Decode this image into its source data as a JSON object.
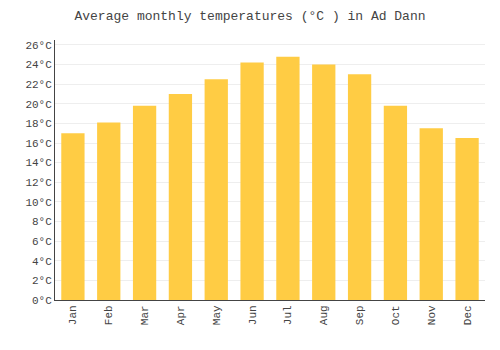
{
  "chart_data": {
    "type": "bar",
    "title": "Average monthly temperatures (°C ) in Ad Dann",
    "categories": [
      "Jan",
      "Feb",
      "Mar",
      "Apr",
      "May",
      "Jun",
      "Jul",
      "Aug",
      "Sep",
      "Oct",
      "Nov",
      "Dec"
    ],
    "values": [
      17.0,
      18.1,
      19.8,
      21.0,
      22.5,
      24.2,
      24.8,
      24.0,
      23.0,
      19.8,
      17.5,
      16.5
    ],
    "color": "#FFCC44",
    "ylim": [
      0,
      26.5
    ],
    "yticks": [
      {
        "value": 0,
        "label": "0°C"
      },
      {
        "value": 2,
        "label": "2°C"
      },
      {
        "value": 4,
        "label": "4°C"
      },
      {
        "value": 6,
        "label": "6°C"
      },
      {
        "value": 8,
        "label": "8°C"
      },
      {
        "value": 10,
        "label": "10°C"
      },
      {
        "value": 12,
        "label": "12°C"
      },
      {
        "value": 14,
        "label": "14°C"
      },
      {
        "value": 16,
        "label": "16°C"
      },
      {
        "value": 18,
        "label": "18°C"
      },
      {
        "value": 20,
        "label": "20°C"
      },
      {
        "value": 22,
        "label": "22°C"
      },
      {
        "value": 24,
        "label": "24°C"
      },
      {
        "value": 26,
        "label": "26°C"
      }
    ],
    "grid": true
  }
}
